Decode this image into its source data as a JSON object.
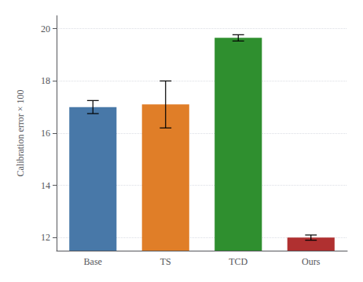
{
  "chart_data": {
    "type": "bar",
    "categories": [
      "Base",
      "TS",
      "TCD",
      "Ours"
    ],
    "values": [
      17.0,
      17.1,
      19.65,
      12.0
    ],
    "errors": [
      0.25,
      0.9,
      0.12,
      0.1
    ],
    "colors": [
      "#4878a8",
      "#e07e28",
      "#2f8f2f",
      "#b03030"
    ],
    "ylabel": "Calibration error × 100",
    "ylim": [
      11.5,
      20.5
    ],
    "yticks": [
      12,
      14,
      16,
      18,
      20
    ],
    "grid": true
  }
}
